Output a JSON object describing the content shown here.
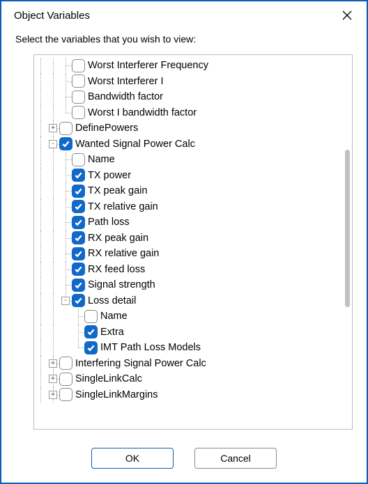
{
  "window": {
    "title": "Object Variables",
    "instruction": "Select the variables that you wish to view:"
  },
  "buttons": {
    "ok": "OK",
    "cancel": "Cancel"
  },
  "colors": {
    "border": "#0a5fb4",
    "checkbox_checked": "#1068c9",
    "guide": "#a8a8a8"
  },
  "tree": [
    {
      "guides": [
        "v",
        "v",
        "t"
      ],
      "expander": null,
      "checked": false,
      "label": "Worst Interferer Frequency"
    },
    {
      "guides": [
        "v",
        "v",
        "t"
      ],
      "expander": null,
      "checked": false,
      "label": "Worst Interferer I"
    },
    {
      "guides": [
        "v",
        "v",
        "t"
      ],
      "expander": null,
      "checked": false,
      "label": "Bandwidth factor"
    },
    {
      "guides": [
        "v",
        "v",
        "e"
      ],
      "expander": null,
      "checked": false,
      "label": "Worst I bandwidth factor"
    },
    {
      "guides": [
        "v",
        "t"
      ],
      "expander": "+",
      "checked": false,
      "label": "DefinePowers"
    },
    {
      "guides": [
        "v",
        "t"
      ],
      "expander": "-",
      "checked": true,
      "label": "Wanted Signal Power Calc"
    },
    {
      "guides": [
        "v",
        "v",
        "t"
      ],
      "expander": null,
      "checked": false,
      "label": "Name"
    },
    {
      "guides": [
        "v",
        "v",
        "t"
      ],
      "expander": null,
      "checked": true,
      "label": "TX power"
    },
    {
      "guides": [
        "v",
        "v",
        "t"
      ],
      "expander": null,
      "checked": true,
      "label": "TX peak gain"
    },
    {
      "guides": [
        "v",
        "v",
        "t"
      ],
      "expander": null,
      "checked": true,
      "label": "TX relative gain"
    },
    {
      "guides": [
        "v",
        "v",
        "t"
      ],
      "expander": null,
      "checked": true,
      "label": "Path loss"
    },
    {
      "guides": [
        "v",
        "v",
        "t"
      ],
      "expander": null,
      "checked": true,
      "label": "RX peak gain"
    },
    {
      "guides": [
        "v",
        "v",
        "t"
      ],
      "expander": null,
      "checked": true,
      "label": "RX relative gain"
    },
    {
      "guides": [
        "v",
        "v",
        "t"
      ],
      "expander": null,
      "checked": true,
      "label": "RX feed loss"
    },
    {
      "guides": [
        "v",
        "v",
        "t"
      ],
      "expander": null,
      "checked": true,
      "label": "Signal strength"
    },
    {
      "guides": [
        "v",
        "v",
        "e"
      ],
      "expander": "-",
      "checked": true,
      "label": "Loss detail"
    },
    {
      "guides": [
        "v",
        "v",
        "",
        "t"
      ],
      "expander": null,
      "checked": false,
      "label": "Name"
    },
    {
      "guides": [
        "v",
        "v",
        "",
        "t"
      ],
      "expander": null,
      "checked": true,
      "label": "Extra"
    },
    {
      "guides": [
        "v",
        "v",
        "",
        "e"
      ],
      "expander": null,
      "checked": true,
      "label": "IMT Path Loss Models"
    },
    {
      "guides": [
        "v",
        "t"
      ],
      "expander": "+",
      "checked": false,
      "label": "Interfering Signal Power Calc"
    },
    {
      "guides": [
        "v",
        "t"
      ],
      "expander": "+",
      "checked": false,
      "label": "SingleLinkCalc"
    },
    {
      "guides": [
        "v",
        "t"
      ],
      "expander": "+",
      "checked": false,
      "label": "SingleLinkMargins"
    }
  ]
}
